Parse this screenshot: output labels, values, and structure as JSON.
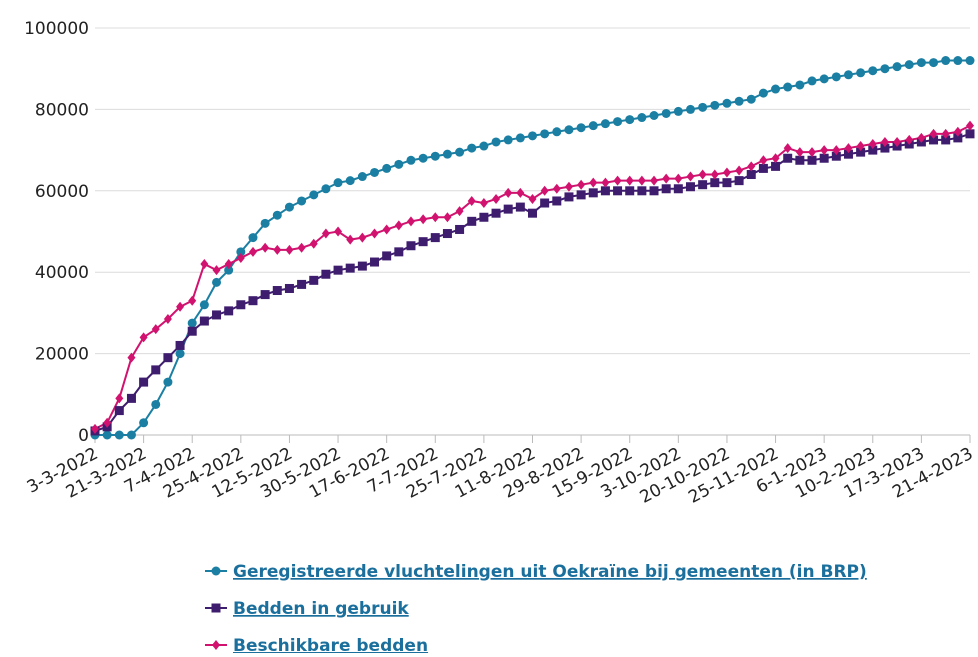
{
  "chart_data": {
    "type": "line",
    "categories": [
      "3-3-2022",
      null,
      null,
      null,
      "21-3-2022",
      null,
      null,
      null,
      "7-4-2022",
      null,
      null,
      null,
      "25-4-2022",
      null,
      null,
      null,
      "12-5-2022",
      null,
      null,
      null,
      "30-5-2022",
      null,
      null,
      null,
      "17-6-2022",
      null,
      null,
      null,
      "7-7-2022",
      null,
      null,
      null,
      "25-7-2022",
      null,
      null,
      null,
      "11-8-2022",
      null,
      null,
      null,
      "29-8-2022",
      null,
      null,
      null,
      "15-9-2022",
      null,
      null,
      null,
      "3-10-2022",
      null,
      null,
      null,
      "20-10-2022",
      null,
      null,
      null,
      "25-11-2022",
      null,
      null,
      null,
      "6-1-2023",
      null,
      null,
      null,
      "10-2-2023",
      null,
      null,
      null,
      "17-3-2023",
      null,
      null,
      null,
      "21-4-2023"
    ],
    "series": [
      {
        "name": "Geregistreerde vluchtelingen uit Oekraïne bij gemeenten (in BRP)",
        "color": "#1a7fa3",
        "marker": "circle",
        "values": [
          0,
          0,
          0,
          0,
          3000,
          7500,
          13000,
          20000,
          27500,
          32000,
          37500,
          40500,
          45000,
          48500,
          52000,
          54000,
          56000,
          57500,
          59000,
          60500,
          62000,
          62500,
          63500,
          64500,
          65500,
          66500,
          67500,
          68000,
          68500,
          69000,
          69500,
          70500,
          71000,
          72000,
          72500,
          73000,
          73500,
          74000,
          74500,
          75000,
          75500,
          76000,
          76500,
          77000,
          77500,
          78000,
          78500,
          79000,
          79500,
          80000,
          80500,
          81000,
          81500,
          82000,
          82500,
          84000,
          85000,
          85500,
          86000,
          87000,
          87500,
          88000,
          88500,
          89000,
          89500,
          90000,
          90500,
          91000,
          91500,
          91500,
          92000,
          92000,
          92000
        ]
      },
      {
        "name": "Bedden in gebruik",
        "color": "#3f1d6e",
        "marker": "square",
        "values": [
          1000,
          2000,
          6000,
          9000,
          13000,
          16000,
          19000,
          22000,
          25500,
          28000,
          29500,
          30500,
          32000,
          33000,
          34500,
          35500,
          36000,
          37000,
          38000,
          39500,
          40500,
          41000,
          41500,
          42500,
          44000,
          45000,
          46500,
          47500,
          48500,
          49500,
          50500,
          52500,
          53500,
          54500,
          55500,
          56000,
          54500,
          57000,
          57500,
          58500,
          59000,
          59500,
          60000,
          60000,
          60000,
          60000,
          60000,
          60500,
          60500,
          61000,
          61500,
          62000,
          62000,
          62500,
          64000,
          65500,
          66000,
          68000,
          67500,
          67500,
          68000,
          68500,
          69000,
          69500,
          70000,
          70500,
          71000,
          71500,
          72000,
          72500,
          72500,
          73000,
          74000
        ]
      },
      {
        "name": "Beschikbare bedden",
        "color": "#d1136f",
        "marker": "diamond",
        "values": [
          1500,
          3000,
          9000,
          19000,
          24000,
          26000,
          28500,
          31500,
          33000,
          42000,
          40500,
          42000,
          43500,
          45000,
          46000,
          45500,
          45500,
          46000,
          47000,
          49500,
          50000,
          48000,
          48500,
          49500,
          50500,
          51500,
          52500,
          53000,
          53500,
          53500,
          55000,
          57500,
          57000,
          58000,
          59500,
          59500,
          58000,
          60000,
          60500,
          61000,
          61500,
          62000,
          62000,
          62500,
          62500,
          62500,
          62500,
          63000,
          63000,
          63500,
          64000,
          64000,
          64500,
          65000,
          66000,
          67500,
          68000,
          70500,
          69500,
          69500,
          70000,
          70000,
          70500,
          71000,
          71500,
          72000,
          72000,
          72500,
          73000,
          74000,
          74000,
          74500,
          76000
        ]
      }
    ],
    "ylim": [
      0,
      100000
    ],
    "yticks": [
      0,
      20000,
      40000,
      60000,
      80000,
      100000
    ],
    "grid": true
  }
}
